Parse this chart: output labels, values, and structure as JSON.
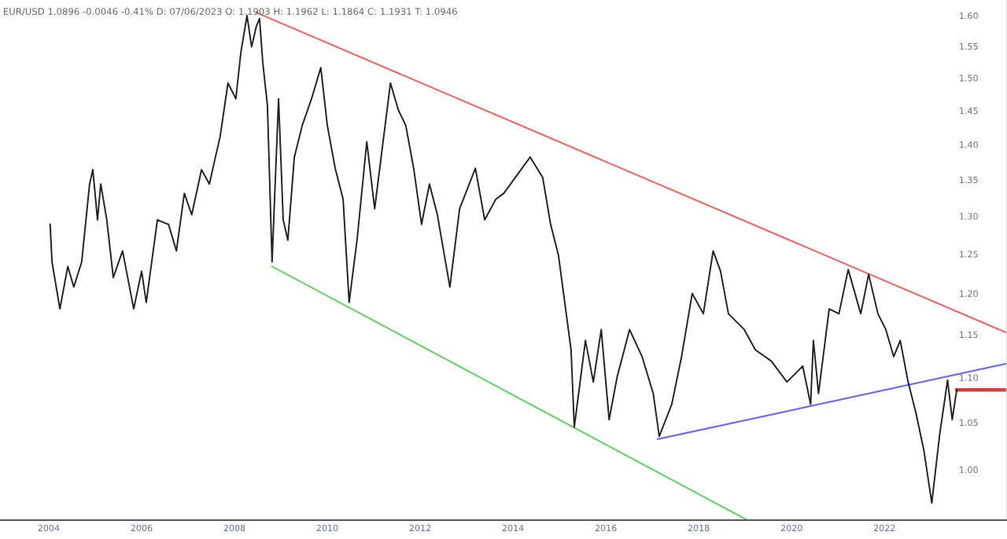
{
  "chart_data": {
    "type": "line",
    "title": "EUR/USD 1.0896 -0.0046 -0.41% D: 07/06/2023 O: 1.1903 H: 1.1962 L: 1.1864 C: 1.1931 T: 1.0946",
    "log": "y",
    "legend": false,
    "grid": false,
    "marker": "none",
    "line_style": "solid",
    "xlim": [
      2002.95,
      2024.64
    ],
    "xticks": [
      2004,
      2006,
      2008,
      2010,
      2012,
      2014,
      2016,
      2018,
      2020,
      2022
    ],
    "ylim": [
      0.949,
      1.626
    ],
    "yticks": [
      {
        "value": 1.0,
        "label": "1.00"
      },
      {
        "value": 1.05,
        "label": "1.05"
      },
      {
        "value": 1.1,
        "label": "1.10"
      },
      {
        "value": 1.15,
        "label": "1.15"
      },
      {
        "value": 1.2,
        "label": "1.20"
      },
      {
        "value": 1.25,
        "label": "1.25"
      },
      {
        "value": 1.3,
        "label": "1.30"
      },
      {
        "value": 1.35,
        "label": "1.35"
      },
      {
        "value": 1.4,
        "label": "1.40"
      },
      {
        "value": 1.45,
        "label": "1.45"
      },
      {
        "value": 1.5,
        "label": "1.50"
      },
      {
        "value": 1.55,
        "label": "1.55"
      },
      {
        "value": 1.6,
        "label": "1.60"
      }
    ],
    "series": [
      {
        "color": "#222222",
        "x": [
          2004.03,
          2004.07,
          2004.24,
          2004.41,
          2004.54,
          2004.71,
          2004.88,
          2004.95,
          2005.05,
          2005.12,
          2005.25,
          2005.39,
          2005.59,
          2005.83,
          2006.0,
          2006.1,
          2006.34,
          2006.58,
          2006.75,
          2006.92,
          2007.08,
          2007.29,
          2007.46,
          2007.59,
          2007.69,
          2007.86,
          2008.03,
          2008.14,
          2008.27,
          2008.37,
          2008.47,
          2008.54,
          2008.61,
          2008.71,
          2008.81,
          2008.95,
          2009.05,
          2009.15,
          2009.29,
          2009.46,
          2009.66,
          2009.86,
          2010.0,
          2010.17,
          2010.34,
          2010.47,
          2010.64,
          2010.85,
          2011.02,
          2011.19,
          2011.36,
          2011.53,
          2011.69,
          2011.86,
          2012.03,
          2012.2,
          2012.37,
          2012.64,
          2012.85,
          2013.19,
          2013.39,
          2013.63,
          2013.8,
          2014.37,
          2014.64,
          2014.81,
          2014.98,
          2015.25,
          2015.32,
          2015.56,
          2015.73,
          2015.9,
          2016.07,
          2016.24,
          2016.51,
          2016.78,
          2017.02,
          2017.15,
          2017.42,
          2017.63,
          2017.86,
          2018.1,
          2018.31,
          2018.47,
          2018.64,
          2018.98,
          2019.22,
          2019.56,
          2019.9,
          2020.24,
          2020.41,
          2020.47,
          2020.58,
          2020.81,
          2021.02,
          2021.22,
          2021.49,
          2021.66,
          2021.86,
          2022.03,
          2022.2,
          2022.34,
          2022.51,
          2022.68,
          2022.85,
          2023.02,
          2023.19,
          2023.36,
          2023.46,
          2023.53,
          2023.56
        ],
        "values": [
          1.289,
          1.24,
          1.181,
          1.234,
          1.208,
          1.24,
          1.344,
          1.364,
          1.295,
          1.344,
          1.295,
          1.22,
          1.254,
          1.181,
          1.228,
          1.189,
          1.295,
          1.289,
          1.254,
          1.331,
          1.302,
          1.364,
          1.344,
          1.382,
          1.411,
          1.492,
          1.468,
          1.541,
          1.6,
          1.549,
          1.582,
          1.595,
          1.524,
          1.458,
          1.24,
          1.468,
          1.295,
          1.268,
          1.382,
          1.428,
          1.468,
          1.516,
          1.428,
          1.366,
          1.323,
          1.189,
          1.268,
          1.404,
          1.31,
          1.398,
          1.492,
          1.451,
          1.428,
          1.366,
          1.289,
          1.344,
          1.302,
          1.208,
          1.31,
          1.366,
          1.295,
          1.323,
          1.331,
          1.382,
          1.353,
          1.289,
          1.248,
          1.132,
          1.045,
          1.143,
          1.095,
          1.156,
          1.053,
          1.1,
          1.156,
          1.124,
          1.082,
          1.035,
          1.07,
          1.124,
          1.2,
          1.175,
          1.254,
          1.228,
          1.175,
          1.156,
          1.132,
          1.119,
          1.095,
          1.113,
          1.07,
          1.143,
          1.082,
          1.181,
          1.175,
          1.23,
          1.175,
          1.224,
          1.175,
          1.156,
          1.124,
          1.143,
          1.095,
          1.06,
          1.02,
          0.966,
          1.037,
          1.097,
          1.053,
          1.077,
          1.086
        ]
      },
      {
        "color": "#e07070",
        "x": [
          2008.47,
          2024.64
        ],
        "values": [
          1.605,
          1.152
        ]
      },
      {
        "color": "#70d070",
        "x": [
          2008.81,
          2019.05
        ],
        "values": [
          1.234,
          0.949
        ]
      },
      {
        "color": "#7070d8",
        "x": [
          2017.12,
          2024.64
        ],
        "values": [
          1.032,
          1.116
        ]
      },
      {
        "color": "#d04040",
        "x": [
          2023.56,
          2024.64
        ],
        "values": [
          1.086,
          1.086
        ]
      }
    ]
  }
}
